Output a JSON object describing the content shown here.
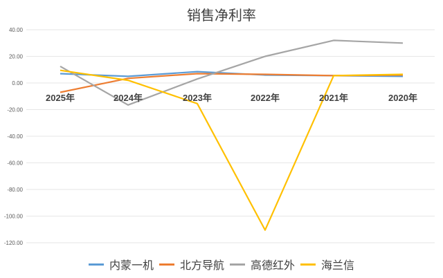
{
  "chart_data": {
    "type": "line",
    "title": "销售净利率",
    "xlabel": "",
    "ylabel": "",
    "categories": [
      "2025年",
      "2024年",
      "2023年",
      "2022年",
      "2021年",
      "2020年"
    ],
    "ylim": [
      -120,
      40
    ],
    "yticks": [
      "40.00",
      "20.00",
      "0.00",
      "-20.00",
      "-40.00",
      "-60.00",
      "-80.00",
      "-100.00",
      "-120.00"
    ],
    "grid": true,
    "legend_position": "bottom",
    "series": [
      {
        "name": "内蒙一机",
        "color": "#5b9bd5",
        "values": [
          7.0,
          5.0,
          8.5,
          6.0,
          5.5,
          5.0
        ]
      },
      {
        "name": "北方导航",
        "color": "#ed7d31",
        "values": [
          -7.0,
          3.5,
          7.0,
          6.5,
          5.5,
          6.0
        ]
      },
      {
        "name": "高德红外",
        "color": "#a5a5a5",
        "values": [
          12.5,
          -16.5,
          3.0,
          20.0,
          32.0,
          30.0
        ]
      },
      {
        "name": "海兰信",
        "color": "#ffc000",
        "values": [
          9.5,
          2.0,
          -15.5,
          -110.5,
          5.5,
          6.5
        ]
      }
    ]
  }
}
